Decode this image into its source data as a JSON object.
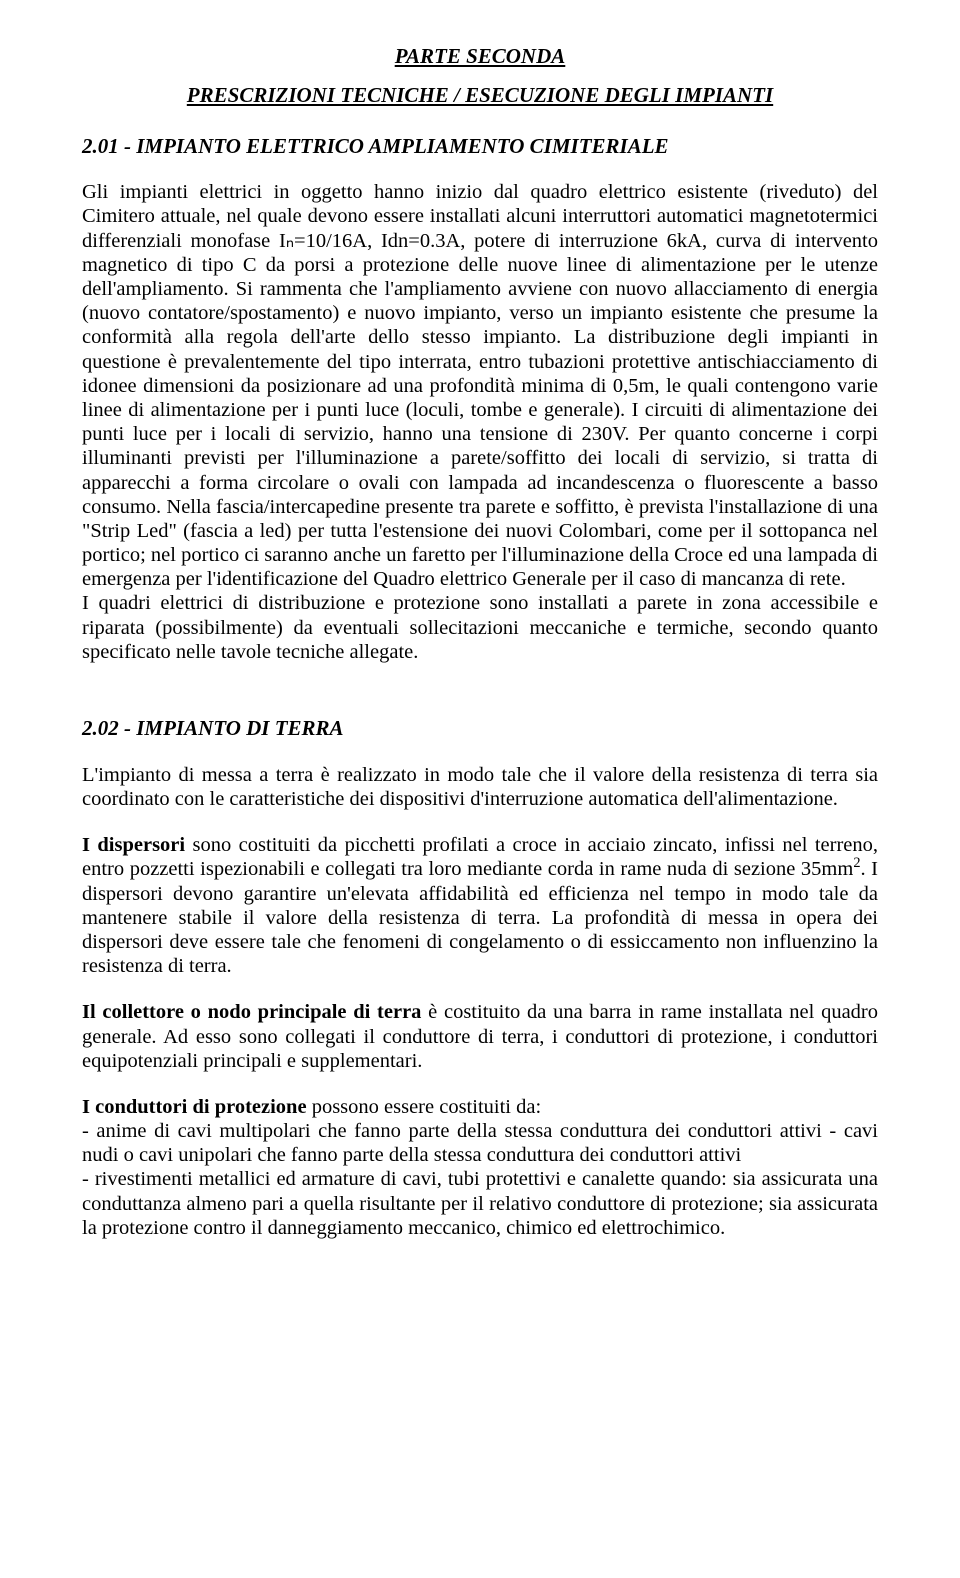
{
  "title_main": "PARTE SECONDA",
  "title_sub": "PRESCRIZIONI TECNICHE / ESECUZIONE DEGLI IMPIANTI",
  "section1": {
    "heading": "2.01 - IMPIANTO ELETTRICO AMPLIAMENTO CIMITERIALE",
    "p1": "Gli impianti elettrici in oggetto hanno inizio dal quadro elettrico esistente (riveduto) del Cimitero attuale, nel quale devono essere installati alcuni interruttori automatici magnetotermici differenziali monofase Iₙ=10/16A, Idn=0.3A, potere di interruzione 6kA, curva di intervento magnetico di tipo C da porsi a protezione delle nuove linee di alimentazione per le utenze dell'ampliamento. Si rammenta che l'ampliamento avviene con nuovo allacciamento di energia (nuovo contatore/spostamento) e nuovo impianto, verso un impianto esistente che presume la conformità alla regola dell'arte dello stesso impianto. La distribuzione degli impianti in questione è prevalentemente del tipo interrata, entro tubazioni protettive antischiacciamento di idonee dimensioni da posizionare ad una profondità minima di 0,5m, le quali contengono varie linee di alimentazione per i punti luce (loculi, tombe e generale). I circuiti di alimentazione dei punti luce per i locali di servizio, hanno una tensione di 230V. Per quanto concerne i corpi illuminanti previsti per l'illuminazione a parete/soffitto dei locali di servizio, si tratta di apparecchi a forma circolare o ovali con lampada ad incandescenza o fluorescente a basso consumo. Nella fascia/intercapedine presente tra parete e soffitto, è prevista l'installazione di una \"Strip Led\" (fascia a led) per tutta l'estensione dei nuovi Colombari, come per il sottopanca nel portico; nel portico ci saranno anche un faretto per l'illuminazione della Croce ed una lampada di emergenza per l'identificazione del Quadro elettrico Generale per il caso di mancanza di rete.",
    "p2": "I quadri elettrici di distribuzione e protezione sono installati a parete in zona accessibile e riparata (possibilmente) da eventuali sollecitazioni meccaniche e termiche, secondo quanto specificato nelle tavole tecniche allegate."
  },
  "section2": {
    "heading": "2.02 - IMPIANTO DI TERRA",
    "p1": "L'impianto di messa a terra è realizzato in modo tale che il valore della resistenza di terra sia coordinato con le caratteristiche dei dispositivi d'interruzione automatica dell'alimentazione.",
    "p2a_bold": "I dispersori",
    "p2a": " sono costituiti da picchetti profilati a croce in acciaio zincato, infissi nel terreno, entro pozzetti ispezionabili e collegati tra loro mediante corda in rame nuda di sezione 35mm",
    "p2a_sup": "2",
    "p2b": ". I dispersori devono garantire un'elevata affidabilità ed efficienza nel tempo in modo tale da mantenere stabile il valore della resistenza di terra. La profondità di messa in opera dei dispersori deve essere tale che fenomeni di congelamento o di essiccamento non influenzino la resistenza di terra.",
    "p3_bold": "Il collettore o nodo principale di terra",
    "p3": " è costituito da una barra in rame installata nel quadro generale. Ad esso sono collegati il conduttore di terra, i conduttori di protezione, i conduttori equipotenziali principali e supplementari.",
    "p4_bold": "I conduttori di protezione",
    "p4_rest": " possono essere costituiti da:",
    "p4_li1": "- anime di cavi multipolari che fanno parte della stessa conduttura dei conduttori attivi - cavi nudi o cavi unipolari che fanno parte della stessa conduttura dei conduttori attivi",
    "p4_li2": "- rivestimenti metallici ed armature di cavi, tubi protettivi e canalette quando: sia assicurata una conduttanza almeno pari a quella risultante per il relativo conduttore di protezione; sia assicurata la protezione contro il danneggiamento meccanico, chimico ed elettrochimico."
  }
}
